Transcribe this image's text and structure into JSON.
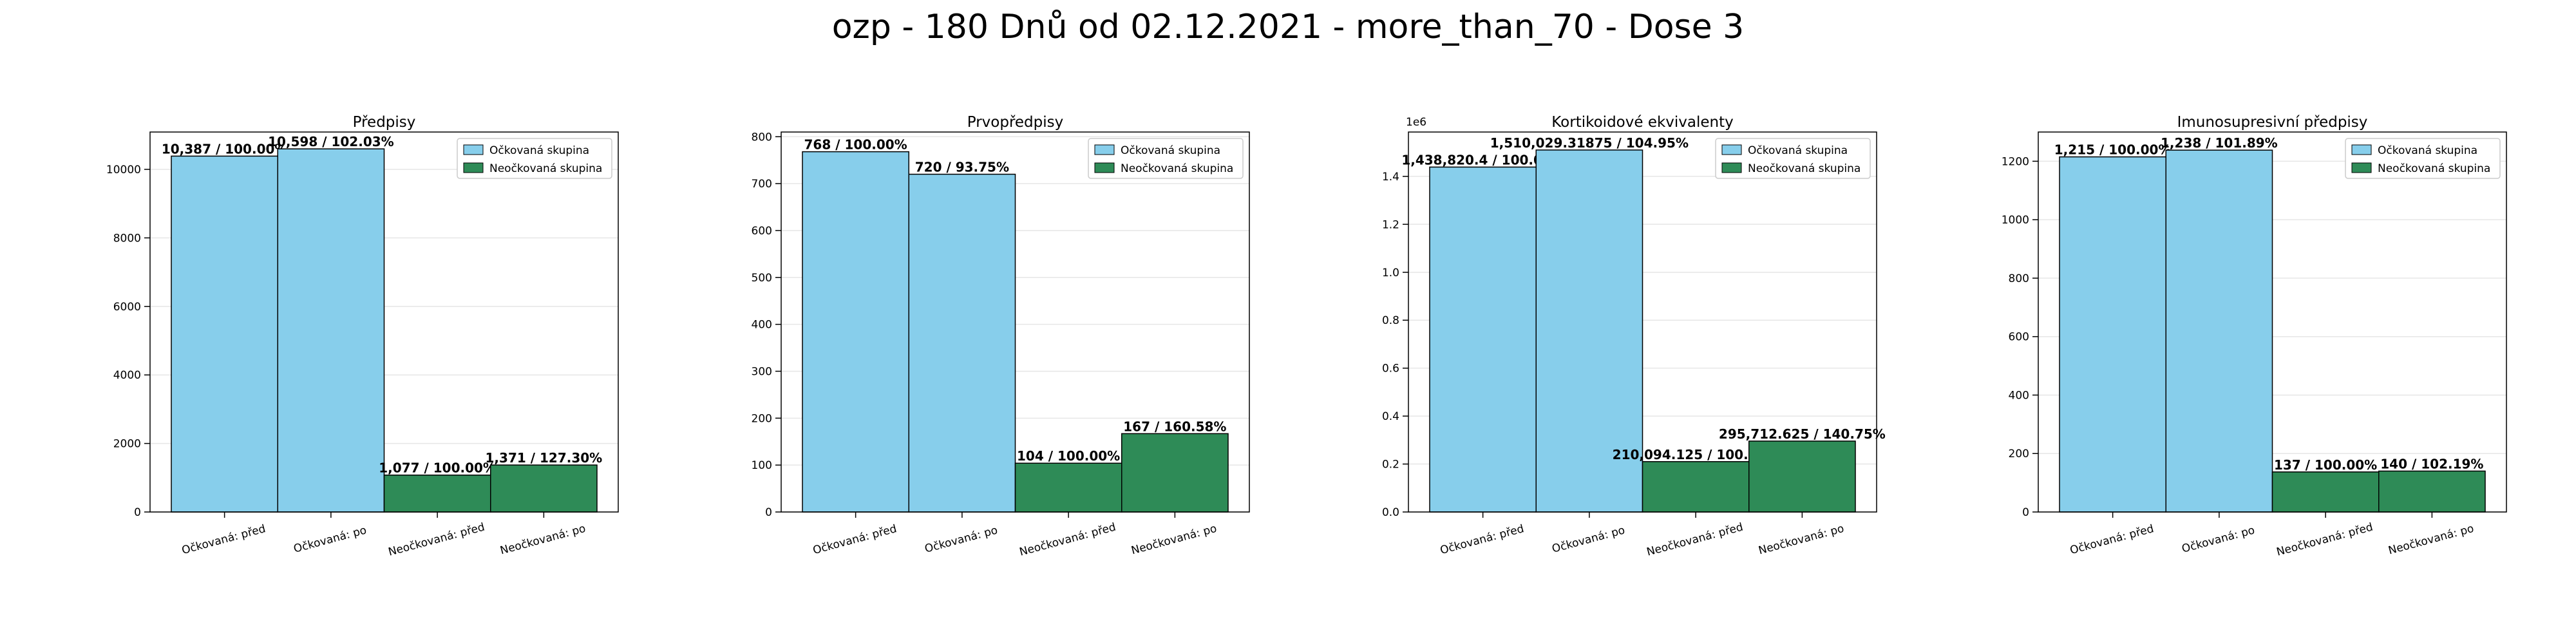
{
  "figure": {
    "title": "ozp - 180 Dnů od 02.12.2021 - more_than_70 - Dose 3"
  },
  "colors": {
    "vaccinated": "#87ceeb",
    "unvaccinated": "#2e8b57",
    "grid": "#e6e6e6",
    "edge": "#000000"
  },
  "chart_data": [
    {
      "type": "bar",
      "title": "Předpisy",
      "categories": [
        "Očkovaná: před",
        "Očkovaná: po",
        "Neočkovaná: před",
        "Neočkovaná: po"
      ],
      "values": [
        10387,
        10598,
        1077,
        1371
      ],
      "groups": [
        "vaccinated",
        "vaccinated",
        "unvaccinated",
        "unvaccinated"
      ],
      "data_labels": [
        "10,387 / 100.00%",
        "10,598 / 102.03%",
        "1,077 / 100.00%",
        "1,371 / 127.30%"
      ],
      "ylim": [
        0,
        11090
      ],
      "yticks": [
        0,
        2000,
        4000,
        6000,
        8000,
        10000
      ],
      "ytick_labels": [
        "0",
        "2000",
        "4000",
        "6000",
        "8000",
        "10000"
      ],
      "scale_note": "",
      "legend": [
        "Očkovaná skupina",
        "Neočkovaná skupina"
      ],
      "legend_position": "top-right",
      "grid": true
    },
    {
      "type": "bar",
      "title": "Prvopředpisy",
      "categories": [
        "Očkovaná: před",
        "Očkovaná: po",
        "Neočkovaná: před",
        "Neočkovaná: po"
      ],
      "values": [
        768,
        720,
        104,
        167
      ],
      "groups": [
        "vaccinated",
        "vaccinated",
        "unvaccinated",
        "unvaccinated"
      ],
      "data_labels": [
        "768 / 100.00%",
        "720 / 93.75%",
        "104 / 100.00%",
        "167 / 160.58%"
      ],
      "ylim": [
        0,
        810
      ],
      "yticks": [
        0,
        100,
        200,
        300,
        400,
        500,
        600,
        700,
        800
      ],
      "ytick_labels": [
        "0",
        "100",
        "200",
        "300",
        "400",
        "500",
        "600",
        "700",
        "800"
      ],
      "scale_note": "",
      "legend": [
        "Očkovaná skupina",
        "Neočkovaná skupina"
      ],
      "legend_position": "top-right",
      "grid": true
    },
    {
      "type": "bar",
      "title": "Kortikoidové ekvivalenty",
      "categories": [
        "Očkovaná: před",
        "Očkovaná: po",
        "Neočkovaná: před",
        "Neočkovaná: po"
      ],
      "values": [
        1438820.4,
        1510029.31875,
        210094.125,
        295712.625
      ],
      "groups": [
        "vaccinated",
        "vaccinated",
        "unvaccinated",
        "unvaccinated"
      ],
      "data_labels": [
        "1,438,820.4 / 100.00%",
        "1,510,029.31875 / 104.95%",
        "210,094.125 / 100.00%",
        "295,712.625 / 140.75%"
      ],
      "ylim": [
        0,
        1585000
      ],
      "yticks": [
        0,
        200000,
        400000,
        600000,
        800000,
        1000000,
        1200000,
        1400000
      ],
      "ytick_labels": [
        "0.0",
        "0.2",
        "0.4",
        "0.6",
        "0.8",
        "1.0",
        "1.2",
        "1.4"
      ],
      "scale_note": "1e6",
      "legend": [
        "Očkovaná skupina",
        "Neočkovaná skupina"
      ],
      "legend_position": "top-right",
      "grid": true
    },
    {
      "type": "bar",
      "title": "Imunosupresivní předpisy",
      "categories": [
        "Očkovaná: před",
        "Očkovaná: po",
        "Neočkovaná: před",
        "Neočkovaná: po"
      ],
      "values": [
        1215,
        1238,
        137,
        140
      ],
      "groups": [
        "vaccinated",
        "vaccinated",
        "unvaccinated",
        "unvaccinated"
      ],
      "data_labels": [
        "1,215 / 100.00%",
        "1,238 / 101.89%",
        "137 / 100.00%",
        "140 / 102.19%"
      ],
      "ylim": [
        0,
        1300
      ],
      "yticks": [
        0,
        200,
        400,
        600,
        800,
        1000,
        1200
      ],
      "ytick_labels": [
        "0",
        "200",
        "400",
        "600",
        "800",
        "1000",
        "1200"
      ],
      "scale_note": "",
      "legend": [
        "Očkovaná skupina",
        "Neočkovaná skupina"
      ],
      "legend_position": "top-right",
      "grid": true
    }
  ]
}
